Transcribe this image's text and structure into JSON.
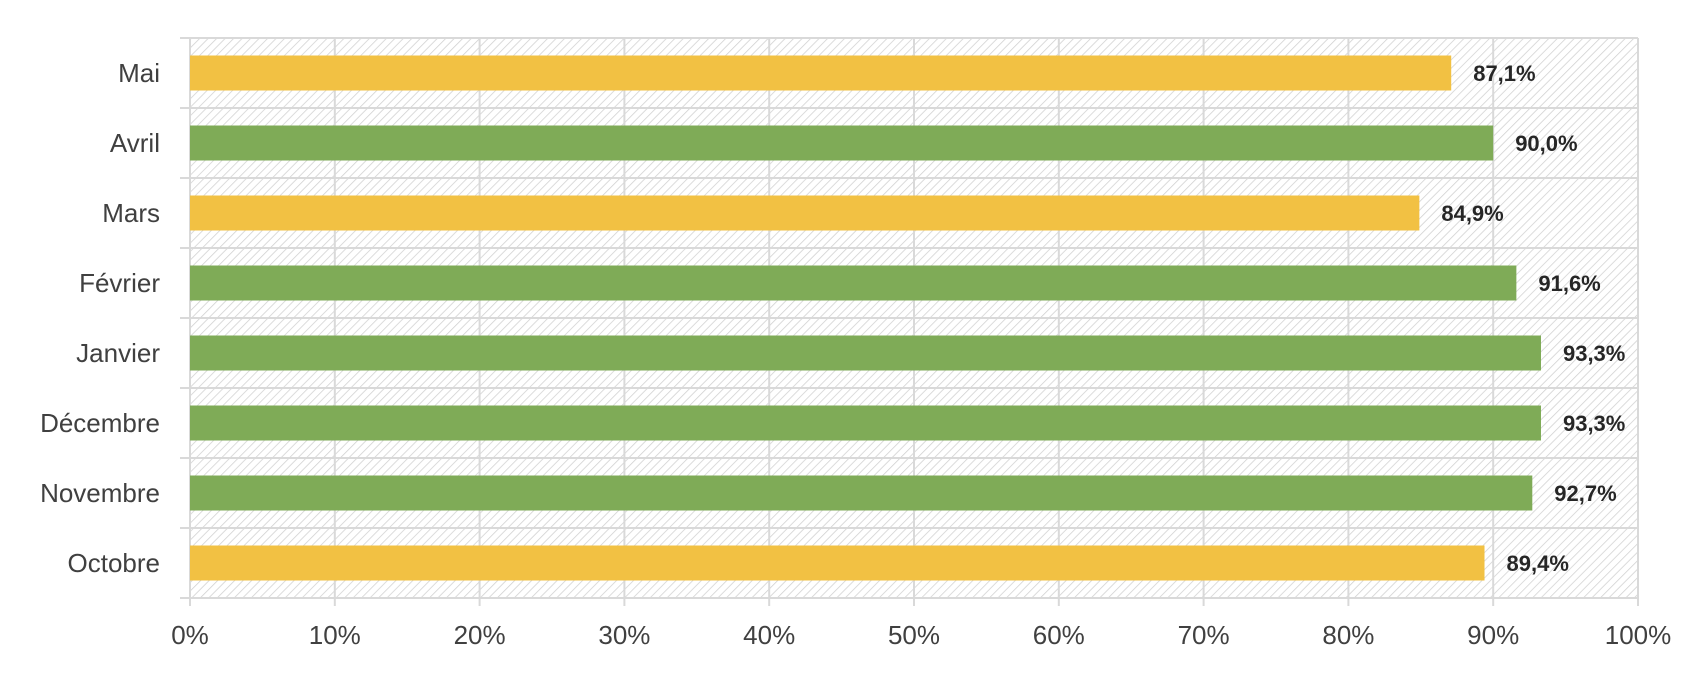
{
  "chart_data": {
    "type": "bar",
    "orientation": "horizontal",
    "title": "",
    "xlabel": "",
    "ylabel": "",
    "categories": [
      "Mai",
      "Avril",
      "Mars",
      "Février",
      "Janvier",
      "Décembre",
      "Novembre",
      "Octobre"
    ],
    "values": [
      87.1,
      90.0,
      84.9,
      91.6,
      93.3,
      93.3,
      92.7,
      89.4
    ],
    "data_labels": [
      "87,1%",
      "90,0%",
      "84,9%",
      "91,6%",
      "93,3%",
      "93,3%",
      "92,7%",
      "89,4%"
    ],
    "bar_colors": [
      "#F2C143",
      "#7FAB57",
      "#F2C143",
      "#7FAB57",
      "#7FAB57",
      "#7FAB57",
      "#7FAB57",
      "#F2C143"
    ],
    "xlim": [
      0,
      100
    ],
    "x_ticks": [
      "0%",
      "10%",
      "20%",
      "30%",
      "40%",
      "50%",
      "60%",
      "70%",
      "80%",
      "90%",
      "100%"
    ],
    "grid": true,
    "legend": "none",
    "colors": {
      "yellow": "#F2C143",
      "green": "#7FAB57",
      "grid": "#D9D9D9",
      "hatch": "#D0D0D0"
    }
  }
}
